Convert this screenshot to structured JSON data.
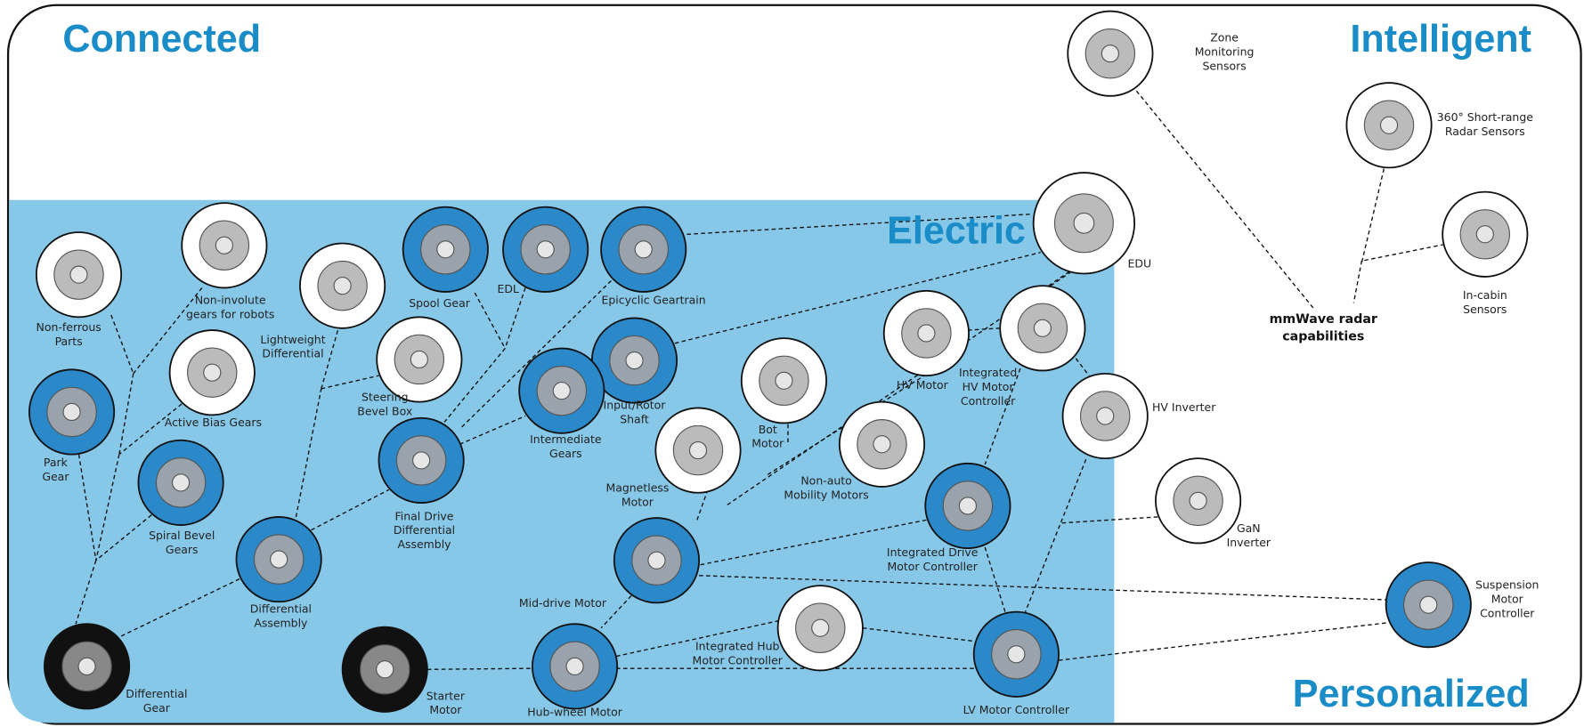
{
  "sections": {
    "connected": "Connected",
    "intelligent": "Intelligent",
    "electric": "Electric",
    "personalized": "Personalized"
  },
  "hub": [
    "mmWave radar",
    "capabilities"
  ],
  "nodes": [
    {
      "label": [
        "Non-ferrous",
        "Parts"
      ]
    },
    {
      "label": [
        "Non-involute",
        "gears for robots"
      ]
    },
    {
      "label": [
        "Lightweight",
        "Differential"
      ]
    },
    {
      "label": [
        "Spool Gear"
      ]
    },
    {
      "label": [
        "EDL"
      ]
    },
    {
      "label": [
        "Epicyclic Geartrain"
      ]
    },
    {
      "label": [
        "Active Bias Gears"
      ]
    },
    {
      "label": [
        "Steering",
        "Bevel Box"
      ]
    },
    {
      "label": [
        "Park",
        "Gear"
      ]
    },
    {
      "label": [
        "Input/Rotor",
        "Shaft"
      ]
    },
    {
      "label": [
        "Intermediate",
        "Gears"
      ]
    },
    {
      "label": [
        "Spiral Bevel",
        "Gears"
      ]
    },
    {
      "label": [
        "Final Drive",
        "Differential",
        "Assembly"
      ]
    },
    {
      "label": [
        "Bot",
        "Motor"
      ]
    },
    {
      "label": [
        "Magnetless",
        "Motor"
      ]
    },
    {
      "label": [
        "HV Motor"
      ]
    },
    {
      "label": [
        "Integrated",
        "HV Motor",
        "Controller"
      ]
    },
    {
      "label": [
        "EDU"
      ]
    },
    {
      "label": [
        "Non-auto",
        "Mobility Motors"
      ]
    },
    {
      "label": [
        "HV Inverter"
      ]
    },
    {
      "label": [
        "Integrated Drive",
        "Motor Controller"
      ]
    },
    {
      "label": [
        "GaN",
        "Inverter"
      ]
    },
    {
      "label": [
        "Differential",
        "Assembly"
      ]
    },
    {
      "label": [
        "Mid-drive Motor"
      ]
    },
    {
      "label": [
        "Differential",
        "Gear"
      ]
    },
    {
      "label": [
        "Starter",
        "Motor"
      ]
    },
    {
      "label": [
        "Hub-wheel Motor"
      ]
    },
    {
      "label": [
        "Integrated Hub",
        "Motor Controller"
      ]
    },
    {
      "label": [
        "LV Motor Controller"
      ]
    },
    {
      "label": [
        "Suspension",
        "Motor",
        "Controller"
      ]
    },
    {
      "label": [
        "Zone",
        "Monitoring",
        "Sensors"
      ]
    },
    {
      "label": [
        "360° Short-range",
        "Radar Sensors"
      ]
    },
    {
      "label": [
        "In-cabin",
        "Sensors"
      ]
    }
  ]
}
